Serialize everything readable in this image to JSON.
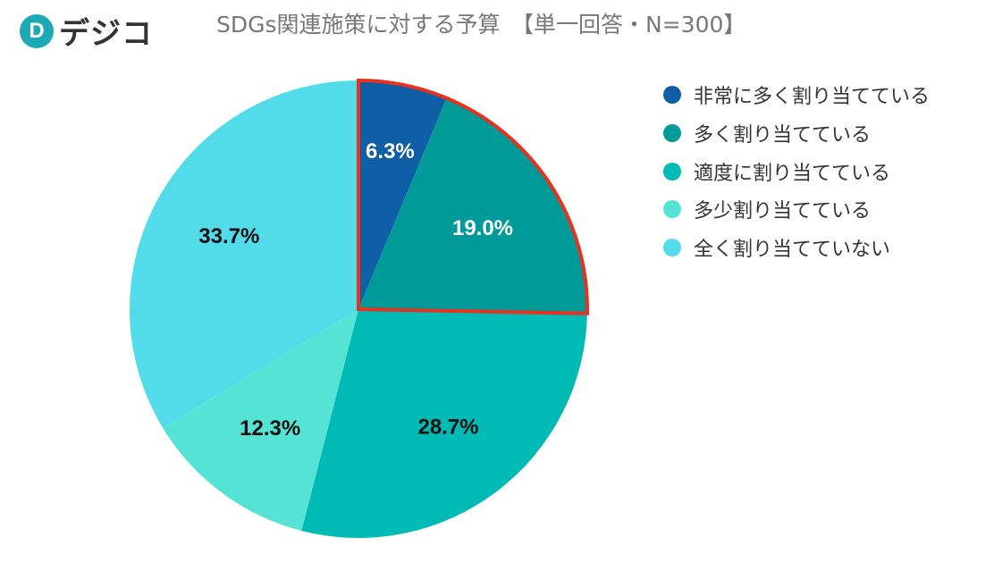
{
  "brand": {
    "mark": "D",
    "name": "デジコ"
  },
  "title": "SDGs関連施策に対する予算　【単一回答・N=300】",
  "chart_data": {
    "type": "pie",
    "title": "SDGs関連施策に対する予算　【単一回答・N=300】",
    "start_angle_deg": 0,
    "direction": "clockwise",
    "highlight_indices": [
      0,
      1
    ],
    "highlight_color": "#e8321e",
    "slices": [
      {
        "label": "非常に多く割り当てている",
        "value": 6.3,
        "display": "6.3%",
        "color": "#0e5fa5",
        "label_color": "#ffffff"
      },
      {
        "label": "多く割り当てている",
        "value": 19.0,
        "display": "19.0%",
        "color": "#009b98",
        "label_color": "#ffffff"
      },
      {
        "label": "適度に割り当てている",
        "value": 28.7,
        "display": "28.7%",
        "color": "#00bab5",
        "label_color": "#111111"
      },
      {
        "label": "多少割り当てている",
        "value": 12.3,
        "display": "12.3%",
        "color": "#54e3d5",
        "label_color": "#111111"
      },
      {
        "label": "全く割り当てていない",
        "value": 33.7,
        "display": "33.7%",
        "color": "#52dbe8",
        "label_color": "#111111"
      }
    ],
    "legend_position": "right"
  }
}
